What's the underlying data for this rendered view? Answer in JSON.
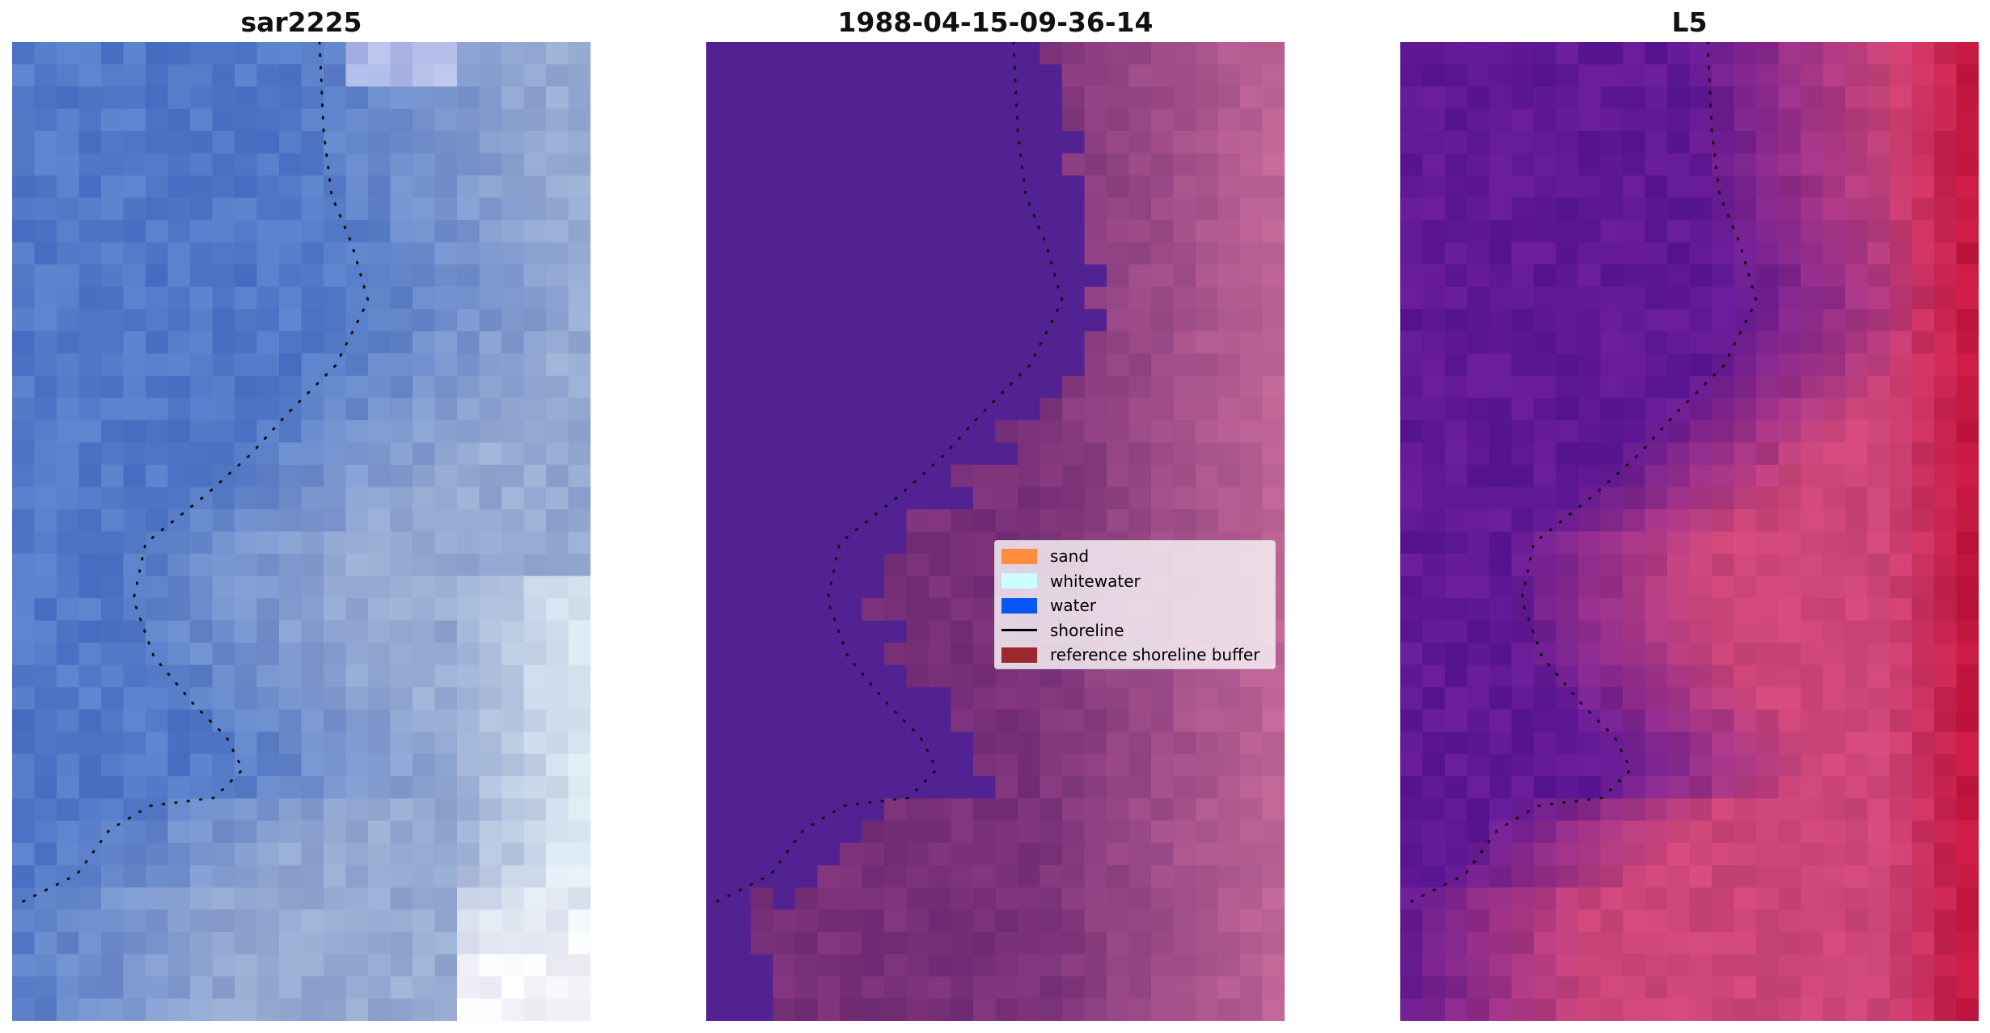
{
  "panels": [
    {
      "title": "sar2225",
      "image": "satellite composite, blue water to pale surf"
    },
    {
      "title": "1988-04-15-09-36-14",
      "image": "classified water mask over land"
    },
    {
      "title": "L5",
      "image": "index raster, purple water to red land"
    }
  ],
  "legend": {
    "items": [
      {
        "label": "sand",
        "color": "#ff8c3f",
        "kind": "patch"
      },
      {
        "label": "whitewater",
        "color": "#ccfdff",
        "kind": "patch"
      },
      {
        "label": "water",
        "color": "#0a55f5",
        "kind": "patch"
      },
      {
        "label": "shoreline",
        "color": "#000000",
        "kind": "line"
      },
      {
        "label": "reference shoreline buffer",
        "color": "#9b2a2e",
        "kind": "patch"
      }
    ]
  }
}
